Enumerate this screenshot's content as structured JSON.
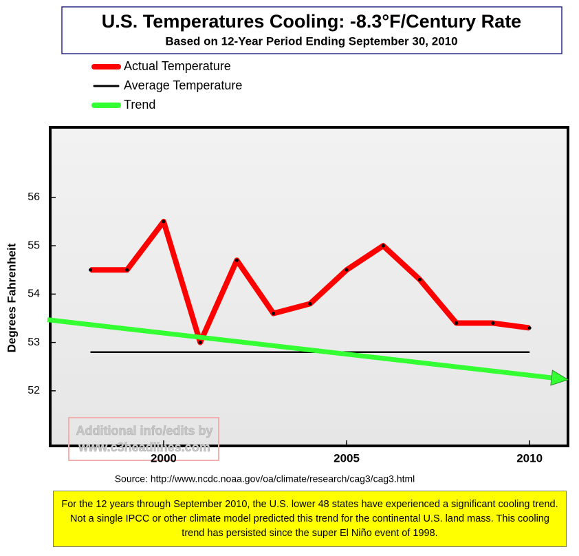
{
  "chart_data": {
    "type": "line",
    "title": "U.S. Temperatures Cooling: -8.3°F/Century Rate",
    "subtitle": "Based on 12-Year Period Ending September 30, 2010",
    "y_label": "Degrees Fahrenheit",
    "x": [
      1998,
      1999,
      2000,
      2001,
      2002,
      2003,
      2004,
      2005,
      2006,
      2007,
      2008,
      2009,
      2010
    ],
    "series": [
      {
        "name": "Actual Temperature",
        "color": "#ff0000",
        "values": [
          54.5,
          54.5,
          55.5,
          53.0,
          54.7,
          53.6,
          53.8,
          54.5,
          55.0,
          54.3,
          53.4,
          53.4,
          53.3
        ]
      },
      {
        "name": "Average Temperature",
        "color": "#000000",
        "values": [
          52.8,
          52.8,
          52.8,
          52.8,
          52.8,
          52.8,
          52.8,
          52.8,
          52.8,
          52.8,
          52.8,
          52.8,
          52.8
        ]
      },
      {
        "name": "Trend",
        "color": "#33ff33",
        "x": [
          1996.9,
          2011.05
        ],
        "values": [
          53.47,
          52.23
        ]
      }
    ],
    "xlim": [
      1996.9,
      2011.05
    ],
    "xticks": [
      2000,
      2005,
      2010
    ],
    "ylim": [
      50.86,
      57.45
    ],
    "yticks": [
      52,
      53,
      54,
      55,
      56
    ],
    "watermark": [
      "Additional info/edits by",
      "www.c3headlines.com"
    ],
    "source": "Source:  http://www.ncdc.noaa.gov/oa/climate/research/cag3/cag3.html",
    "caption": "For the 12 years through September 2010, the U.S. lower 48 states have experienced a significant cooling trend. Not a single IPCC or other climate model predicted this trend for the continental U.S. land mass. This cooling trend has persisted since the super El Niño event of 1998."
  }
}
